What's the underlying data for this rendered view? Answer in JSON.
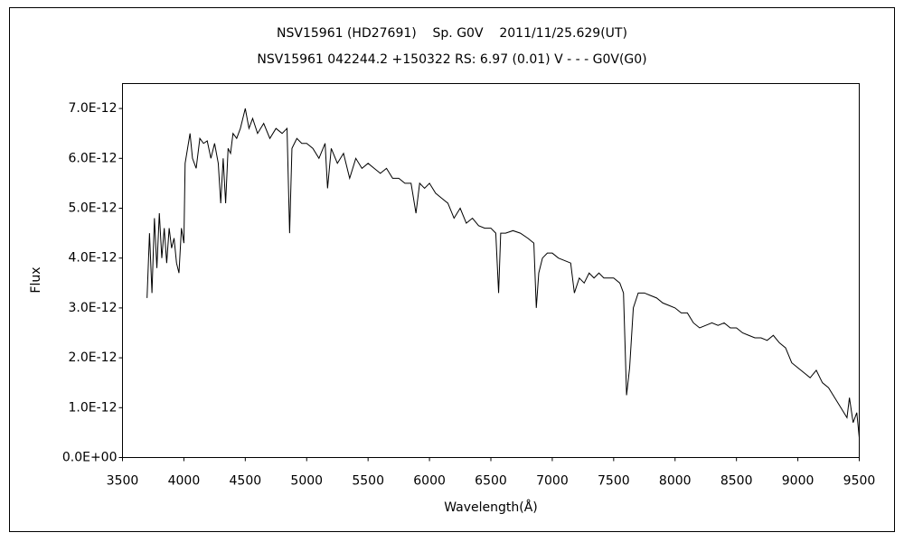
{
  "chart_data": {
    "type": "line",
    "title": "NSV15961 (HD27691)    Sp. G0V    2011/11/25.629(UT)",
    "subtitle": "NSV15961 042244.2 +150322 RS: 6.97 (0.01) V - - - G0V(G0)",
    "x_label": "Wavelength(Å)",
    "y_label": "Flux",
    "xlim": [
      3500,
      9500
    ],
    "xticks": [
      3500,
      4000,
      4500,
      5000,
      5500,
      6000,
      6500,
      7000,
      7500,
      8000,
      8500,
      9000,
      9500
    ],
    "ylim": [
      0,
      7.5e-12
    ],
    "yticks": [
      {
        "value": 0,
        "label": "0.0E+00"
      },
      {
        "value": 1e-12,
        "label": "1.0E-12"
      },
      {
        "value": 2e-12,
        "label": "2.0E-12"
      },
      {
        "value": 3e-12,
        "label": "3.0E-12"
      },
      {
        "value": 4e-12,
        "label": "4.0E-12"
      },
      {
        "value": 5e-12,
        "label": "5.0E-12"
      },
      {
        "value": 6e-12,
        "label": "6.0E-12"
      },
      {
        "value": 7e-12,
        "label": "7.0E-12"
      }
    ],
    "color": "#000000",
    "x": [
      3700,
      3720,
      3740,
      3760,
      3780,
      3800,
      3820,
      3840,
      3860,
      3880,
      3900,
      3920,
      3940,
      3960,
      3980,
      4000,
      4010,
      4030,
      4050,
      4070,
      4100,
      4130,
      4160,
      4190,
      4220,
      4250,
      4280,
      4300,
      4320,
      4340,
      4360,
      4380,
      4400,
      4430,
      4460,
      4500,
      4530,
      4560,
      4600,
      4650,
      4700,
      4750,
      4800,
      4840,
      4861,
      4880,
      4920,
      4960,
      5000,
      5050,
      5100,
      5150,
      5170,
      5200,
      5250,
      5300,
      5350,
      5400,
      5450,
      5500,
      5550,
      5600,
      5650,
      5700,
      5750,
      5800,
      5850,
      5890,
      5920,
      5960,
      6000,
      6050,
      6100,
      6150,
      6200,
      6250,
      6300,
      6350,
      6400,
      6450,
      6500,
      6540,
      6563,
      6580,
      6620,
      6680,
      6740,
      6800,
      6850,
      6870,
      6890,
      6920,
      6960,
      7000,
      7050,
      7100,
      7150,
      7180,
      7220,
      7260,
      7300,
      7340,
      7380,
      7420,
      7460,
      7500,
      7550,
      7580,
      7605,
      7630,
      7660,
      7700,
      7750,
      7800,
      7850,
      7900,
      7950,
      8000,
      8050,
      8100,
      8150,
      8200,
      8250,
      8300,
      8350,
      8400,
      8450,
      8500,
      8550,
      8600,
      8650,
      8700,
      8750,
      8800,
      8850,
      8900,
      8950,
      9000,
      9050,
      9100,
      9150,
      9200,
      9250,
      9300,
      9350,
      9400,
      9420,
      9450,
      9480,
      9500
    ],
    "values": [
      3.2e-12,
      4.5e-12,
      3.3e-12,
      4.8e-12,
      3.8e-12,
      4.9e-12,
      4e-12,
      4.6e-12,
      3.9e-12,
      4.6e-12,
      4.2e-12,
      4.4e-12,
      3.9e-12,
      3.7e-12,
      4.6e-12,
      4.3e-12,
      5.9e-12,
      6.2e-12,
      6.5e-12,
      6e-12,
      5.8e-12,
      6.4e-12,
      6.3e-12,
      6.35e-12,
      6e-12,
      6.3e-12,
      5.9e-12,
      5.1e-12,
      6e-12,
      5.1e-12,
      6.2e-12,
      6.1e-12,
      6.5e-12,
      6.4e-12,
      6.6e-12,
      7e-12,
      6.6e-12,
      6.8e-12,
      6.5e-12,
      6.7e-12,
      6.4e-12,
      6.6e-12,
      6.5e-12,
      6.6e-12,
      4.5e-12,
      6.2e-12,
      6.4e-12,
      6.3e-12,
      6.3e-12,
      6.2e-12,
      6e-12,
      6.3e-12,
      5.4e-12,
      6.2e-12,
      5.9e-12,
      6.1e-12,
      5.6e-12,
      6e-12,
      5.8e-12,
      5.9e-12,
      5.8e-12,
      5.7e-12,
      5.8e-12,
      5.6e-12,
      5.6e-12,
      5.5e-12,
      5.5e-12,
      4.9e-12,
      5.5e-12,
      5.4e-12,
      5.5e-12,
      5.3e-12,
      5.2e-12,
      5.1e-12,
      4.8e-12,
      5e-12,
      4.7e-12,
      4.8e-12,
      4.65e-12,
      4.6e-12,
      4.6e-12,
      4.5e-12,
      3.3e-12,
      4.5e-12,
      4.5e-12,
      4.55e-12,
      4.5e-12,
      4.4e-12,
      4.3e-12,
      3e-12,
      3.7e-12,
      4e-12,
      4.1e-12,
      4.1e-12,
      4e-12,
      3.95e-12,
      3.9e-12,
      3.3e-12,
      3.6e-12,
      3.5e-12,
      3.7e-12,
      3.6e-12,
      3.7e-12,
      3.6e-12,
      3.6e-12,
      3.6e-12,
      3.5e-12,
      3.3e-12,
      1.25e-12,
      1.8e-12,
      3e-12,
      3.3e-12,
      3.3e-12,
      3.25e-12,
      3.2e-12,
      3.1e-12,
      3.05e-12,
      3e-12,
      2.9e-12,
      2.9e-12,
      2.7e-12,
      2.6e-12,
      2.65e-12,
      2.7e-12,
      2.65e-12,
      2.7e-12,
      2.6e-12,
      2.6e-12,
      2.5e-12,
      2.45e-12,
      2.4e-12,
      2.4e-12,
      2.35e-12,
      2.45e-12,
      2.3e-12,
      2.2e-12,
      1.9e-12,
      1.8e-12,
      1.7e-12,
      1.6e-12,
      1.75e-12,
      1.5e-12,
      1.4e-12,
      1.2e-12,
      1e-12,
      8e-13,
      1.2e-12,
      7e-13,
      9e-13,
      4e-13
    ]
  }
}
